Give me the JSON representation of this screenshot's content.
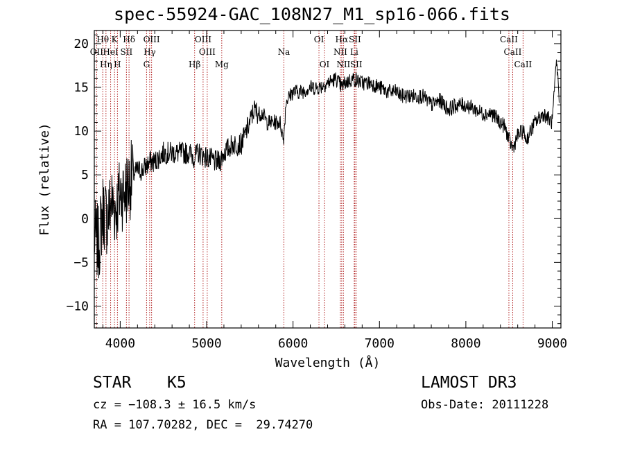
{
  "chart_data": {
    "type": "line",
    "title": "spec-55924-GAC_108N27_M1_sp16-066.fits",
    "xlabel": "Wavelength (Å)",
    "ylabel": "Flux (relative)",
    "xlim": [
      3700,
      9100
    ],
    "ylim": [
      -12.5,
      21.5
    ],
    "xticks": [
      4000,
      5000,
      6000,
      7000,
      8000,
      9000
    ],
    "yticks": [
      -10,
      -5,
      0,
      5,
      10,
      15,
      20
    ],
    "series": [
      {
        "name": "flux",
        "x": [
          3700,
          3750,
          3800,
          3850,
          3900,
          3950,
          4000,
          4050,
          4100,
          4150,
          4200,
          4250,
          4300,
          4350,
          4400,
          4450,
          4500,
          4600,
          4700,
          4800,
          4860,
          4900,
          5000,
          5100,
          5150,
          5200,
          5250,
          5300,
          5400,
          5500,
          5550,
          5600,
          5650,
          5700,
          5800,
          5850,
          5890,
          5920,
          6000,
          6100,
          6200,
          6300,
          6400,
          6500,
          6563,
          6600,
          6700,
          6800,
          6900,
          7000,
          7100,
          7200,
          7250,
          7300,
          7400,
          7500,
          7600,
          7700,
          7800,
          7900,
          8000,
          8100,
          8200,
          8300,
          8400,
          8450,
          8500,
          8542,
          8600,
          8662,
          8700,
          8800,
          8900,
          9000,
          9050,
          9080
        ],
        "y": [
          -2,
          -3,
          1,
          0,
          2,
          1,
          3,
          3,
          4,
          5,
          5.5,
          5.5,
          6,
          6.5,
          6.5,
          7,
          7.5,
          7.5,
          7.5,
          7.5,
          7,
          7.5,
          7,
          6.5,
          6.5,
          7.5,
          8,
          8.5,
          8.5,
          11,
          12.5,
          12,
          12,
          11,
          11,
          11,
          9,
          13.5,
          14.5,
          14.5,
          15,
          15,
          15.5,
          16,
          15,
          15.5,
          16,
          15.5,
          15.5,
          15,
          14.5,
          14.5,
          14,
          14,
          14,
          14,
          13,
          13.5,
          12.5,
          13,
          13,
          12.5,
          12,
          12,
          11,
          10.5,
          9,
          8,
          9.5,
          10,
          9,
          11,
          12,
          11,
          18,
          14
        ]
      }
    ],
    "lines": [
      {
        "name": "Hθ",
        "wavelength": 3798
      },
      {
        "name": "OII",
        "wavelength": 3727
      },
      {
        "name": "Hη",
        "wavelength": 3835
      },
      {
        "name": "K",
        "wavelength": 3934
      },
      {
        "name": "HeI",
        "wavelength": 3889
      },
      {
        "name": "H",
        "wavelength": 3968
      },
      {
        "name": "SII",
        "wavelength": 4072
      },
      {
        "name": "Hδ",
        "wavelength": 4102
      },
      {
        "name": "OIII",
        "wavelength": 4363
      },
      {
        "name": "Hγ",
        "wavelength": 4341
      },
      {
        "name": "G",
        "wavelength": 4305
      },
      {
        "name": "Hβ",
        "wavelength": 4861
      },
      {
        "name": "OIII",
        "wavelength": 4959
      },
      {
        "name": "OIII",
        "wavelength": 5007
      },
      {
        "name": "Mg",
        "wavelength": 5175
      },
      {
        "name": "Na",
        "wavelength": 5894
      },
      {
        "name": "OI",
        "wavelength": 6300
      },
      {
        "name": "OI",
        "wavelength": 6364
      },
      {
        "name": "Hα",
        "wavelength": 6563
      },
      {
        "name": "NII",
        "wavelength": 6548
      },
      {
        "name": "NII",
        "wavelength": 6583
      },
      {
        "name": "SII",
        "wavelength": 6716
      },
      {
        "name": "SII",
        "wavelength": 6731
      },
      {
        "name": "Li",
        "wavelength": 6708
      },
      {
        "name": "CaII",
        "wavelength": 8498
      },
      {
        "name": "CaII",
        "wavelength": 8542
      },
      {
        "name": "CaII",
        "wavelength": 8662
      }
    ],
    "line_color": "#b22222"
  },
  "info": {
    "object_class": "STAR",
    "subclass": "K5",
    "survey": "LAMOST DR3",
    "redshift": "cz = −108.3 ± 16.5 km/s",
    "obs_date": "Obs-Date: 20111228",
    "coords": "RA = 107.70282, DEC =  29.74270"
  }
}
